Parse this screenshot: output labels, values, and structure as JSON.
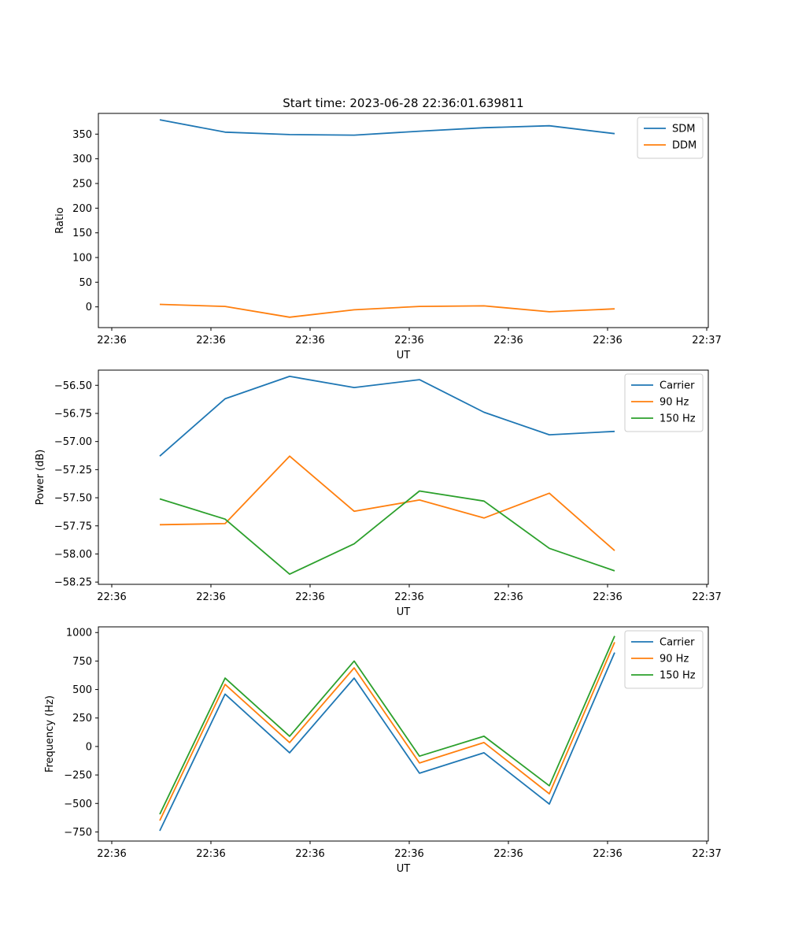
{
  "chart_data": [
    {
      "type": "line",
      "title": "Start time: 2023-06-28 22:36:01.639811",
      "xlabel": "UT",
      "ylabel": "Ratio",
      "xtick_labels": [
        "22:36",
        "22:36",
        "22:36",
        "22:36",
        "22:36",
        "22:36",
        "22:36",
        "22:37"
      ],
      "ytick_labels": [
        "0",
        "50",
        "100",
        "150",
        "200",
        "250",
        "300",
        "350"
      ],
      "ylim": [
        -42,
        392
      ],
      "yticks": [
        0,
        50,
        100,
        150,
        200,
        250,
        300,
        350
      ],
      "legend_position": "upper right",
      "series": [
        {
          "name": "SDM",
          "color": "#1f77b4",
          "values": [
            379,
            354,
            349,
            348,
            356,
            363,
            367,
            351
          ]
        },
        {
          "name": "DDM",
          "color": "#ff7f0e",
          "values": [
            5,
            1,
            -21,
            -6,
            1,
            2,
            -10,
            -4
          ]
        }
      ]
    },
    {
      "type": "line",
      "title": "",
      "xlabel": "UT",
      "ylabel": "Power (dB)",
      "xtick_labels": [
        "22:36",
        "22:36",
        "22:36",
        "22:36",
        "22:36",
        "22:36",
        "22:36",
        "22:37"
      ],
      "ytick_labels": [
        "−58.25",
        "−58.00",
        "−57.75",
        "−57.50",
        "−57.25",
        "−57.00",
        "−56.75",
        "−56.50"
      ],
      "ylim": [
        -58.27,
        -56.365
      ],
      "yticks": [
        -58.25,
        -58.0,
        -57.75,
        -57.5,
        -57.25,
        -57.0,
        -56.75,
        -56.5
      ],
      "legend_position": "upper right",
      "series": [
        {
          "name": "Carrier",
          "color": "#1f77b4",
          "values": [
            -57.13,
            -56.62,
            -56.42,
            -56.52,
            -56.45,
            -56.74,
            -56.94,
            -56.91
          ]
        },
        {
          "name": "90 Hz",
          "color": "#ff7f0e",
          "values": [
            -57.74,
            -57.73,
            -57.13,
            -57.62,
            -57.52,
            -57.68,
            -57.46,
            -57.97
          ]
        },
        {
          "name": "150 Hz",
          "color": "#2ca02c",
          "values": [
            -57.51,
            -57.69,
            -58.18,
            -57.91,
            -57.44,
            -57.53,
            -57.95,
            -58.15
          ]
        }
      ]
    },
    {
      "type": "line",
      "title": "",
      "xlabel": "UT",
      "ylabel": "Frequency (Hz)",
      "xtick_labels": [
        "22:36",
        "22:36",
        "22:36",
        "22:36",
        "22:36",
        "22:36",
        "22:36",
        "22:37"
      ],
      "ytick_labels": [
        "−750",
        "−500",
        "−250",
        "0",
        "250",
        "500",
        "750",
        "1000"
      ],
      "ylim": [
        -830,
        1050
      ],
      "yticks": [
        -750,
        -500,
        -250,
        0,
        250,
        500,
        750,
        1000
      ],
      "legend_position": "upper right",
      "series": [
        {
          "name": "Carrier",
          "color": "#1f77b4",
          "values": [
            -740,
            460,
            -55,
            600,
            -235,
            -55,
            -505,
            825
          ]
        },
        {
          "name": "90 Hz",
          "color": "#ff7f0e",
          "values": [
            -650,
            545,
            35,
            690,
            -145,
            35,
            -415,
            915
          ]
        },
        {
          "name": "150 Hz",
          "color": "#2ca02c",
          "values": [
            -595,
            600,
            90,
            750,
            -85,
            90,
            -345,
            970
          ]
        }
      ]
    }
  ]
}
